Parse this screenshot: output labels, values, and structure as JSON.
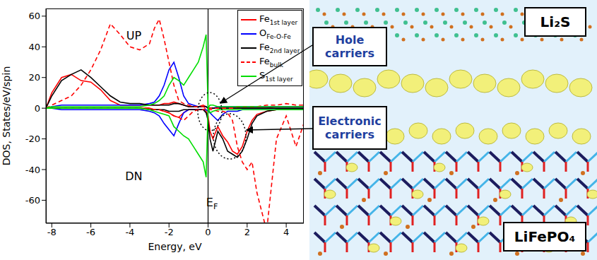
{
  "chart_data": {
    "type": "line",
    "x_label": "Energy, eV",
    "y_label": "DOS, States/eV/spin",
    "x": [
      -8.3,
      -8,
      -7.5,
      -7,
      -6.5,
      -6,
      -5.5,
      -5,
      -4.5,
      -4,
      -3.5,
      -3,
      -2.75,
      -2.5,
      -2.25,
      -2,
      -1.75,
      -1.5,
      -1.25,
      -1,
      -0.75,
      -0.5,
      -0.25,
      -0.1,
      0,
      0.1,
      0.25,
      0.5,
      0.75,
      1,
      1.25,
      1.5,
      1.75,
      2,
      2.25,
      2.5,
      3,
      3.5,
      4,
      4.5,
      4.9
    ],
    "xlim": [
      -8.3,
      4.9
    ],
    "xticks": [
      -8,
      -6,
      -4,
      -2,
      0,
      2,
      4
    ],
    "ylim": [
      -75,
      65
    ],
    "yticks": [
      -60,
      -40,
      -20,
      0,
      20,
      40,
      60
    ],
    "legend": "top-right",
    "vlines": [
      0
    ],
    "series": [
      {
        "name": "Fe",
        "subscript": "1st layer",
        "color": "#ff0000",
        "line_style": "solid",
        "values": [
          0,
          10,
          20,
          22,
          18,
          17,
          12,
          5,
          2,
          2,
          2,
          2,
          2,
          2,
          3,
          3,
          4,
          3,
          2,
          1,
          1,
          1,
          2,
          1,
          0,
          0,
          0,
          0,
          0,
          0,
          0,
          0,
          0,
          0,
          0,
          0,
          0,
          1,
          1,
          1,
          1
        ],
        "values_down": [
          0,
          0,
          0,
          0,
          0,
          0,
          0,
          0,
          0,
          0,
          0,
          0,
          -1,
          -1,
          -2,
          -3,
          -5,
          -6,
          -3,
          -1,
          -1,
          -1,
          -1,
          -2,
          -5,
          -15,
          -20,
          -12,
          -18,
          -22,
          -28,
          -30,
          -25,
          -15,
          -8,
          -4,
          -2,
          -1,
          -1,
          -1,
          -1
        ]
      },
      {
        "name": "O",
        "subscript": "Fe-O-Fe",
        "color": "#0000ff",
        "line_style": "solid",
        "values": [
          0,
          1,
          2,
          2,
          2,
          2,
          2,
          2,
          2,
          2,
          2,
          3,
          4,
          8,
          15,
          25,
          30,
          20,
          8,
          3,
          2,
          1,
          1,
          1,
          0,
          0,
          0,
          1,
          1,
          1,
          1,
          1,
          1,
          1,
          1,
          1,
          1,
          1,
          1,
          1,
          1
        ],
        "values_down": [
          0,
          0,
          -1,
          -1,
          -1,
          -1,
          -1,
          -1,
          -1,
          -1,
          -1,
          -2,
          -3,
          -5,
          -10,
          -14,
          -18,
          -10,
          -3,
          -1,
          -1,
          -1,
          -1,
          -1,
          -2,
          -3,
          -5,
          -8,
          -4,
          -2,
          -2,
          -2,
          -1,
          -1,
          -1,
          -1,
          -1,
          -1,
          -1,
          -1,
          -1
        ]
      },
      {
        "name": "Fe",
        "subscript": "2nd layer",
        "color": "#000000",
        "line_style": "solid",
        "values": [
          0,
          8,
          18,
          22,
          25,
          20,
          14,
          8,
          4,
          3,
          3,
          2,
          2,
          2,
          2,
          2,
          3,
          3,
          2,
          1,
          1,
          1,
          1,
          1,
          0,
          0,
          0,
          0,
          0,
          0,
          0,
          0,
          0,
          0,
          0,
          0,
          0,
          0,
          0,
          0,
          0
        ],
        "values_down": [
          0,
          0,
          0,
          0,
          0,
          0,
          0,
          0,
          0,
          0,
          0,
          -1,
          -1,
          -1,
          -1,
          -2,
          -2,
          -2,
          -1,
          -1,
          -1,
          -1,
          -1,
          -3,
          -8,
          -20,
          -28,
          -15,
          -20,
          -28,
          -30,
          -32,
          -28,
          -20,
          -10,
          -5,
          -2,
          -1,
          -1,
          -1,
          -1
        ]
      },
      {
        "name": "Fe",
        "subscript": "bulk",
        "color": "#ff0000",
        "line_style": "dashed",
        "values": [
          0,
          2,
          5,
          8,
          15,
          25,
          38,
          55,
          48,
          40,
          38,
          42,
          52,
          58,
          45,
          30,
          15,
          5,
          3,
          2,
          1,
          1,
          1,
          0,
          0,
          0,
          0,
          0,
          0,
          0,
          0,
          1,
          1,
          1,
          1,
          1,
          2,
          2,
          3,
          2,
          2
        ],
        "values_down": [
          0,
          0,
          0,
          0,
          0,
          0,
          0,
          0,
          0,
          0,
          0,
          0,
          -1,
          -1,
          -2,
          -3,
          -5,
          -6,
          -8,
          -5,
          -2,
          -1,
          -1,
          0,
          0,
          -1,
          -1,
          -2,
          -2,
          -3,
          -8,
          -25,
          -35,
          -40,
          -35,
          -55,
          -80,
          -20,
          -5,
          -25,
          -10
        ]
      },
      {
        "name": "S",
        "subscript": "1st layer",
        "color": "#00dd00",
        "line_style": "solid",
        "values": [
          0,
          1,
          1,
          1,
          1,
          1,
          1,
          1,
          1,
          1,
          1,
          2,
          3,
          5,
          8,
          15,
          20,
          18,
          15,
          20,
          25,
          30,
          40,
          48,
          0,
          2,
          2,
          1,
          1,
          1,
          1,
          1,
          1,
          1,
          1,
          1,
          1,
          1,
          1,
          1,
          1
        ],
        "values_down": [
          0,
          0,
          0,
          0,
          0,
          0,
          0,
          0,
          0,
          0,
          0,
          -1,
          -2,
          -3,
          -4,
          -5,
          -12,
          -15,
          -18,
          -20,
          -25,
          -30,
          -35,
          -45,
          0,
          -3,
          -2,
          -1,
          -1,
          -1,
          -1,
          -1,
          -1,
          -1,
          -1,
          -1,
          -1,
          -1,
          -1,
          -1,
          -1
        ]
      }
    ],
    "annotations": [
      {
        "text": "UP",
        "x": -3.8,
        "y": 47
      },
      {
        "text": "DN",
        "x": -3.8,
        "y": -45
      },
      {
        "text": "E",
        "subscript": "F",
        "x": 0.2,
        "y": -62
      }
    ]
  },
  "panel": {
    "hole_label": "Hole carriers",
    "electron_label": "Electronic carriers",
    "top_label": "Li₂S",
    "bottom_label": "LiFePO₄"
  }
}
